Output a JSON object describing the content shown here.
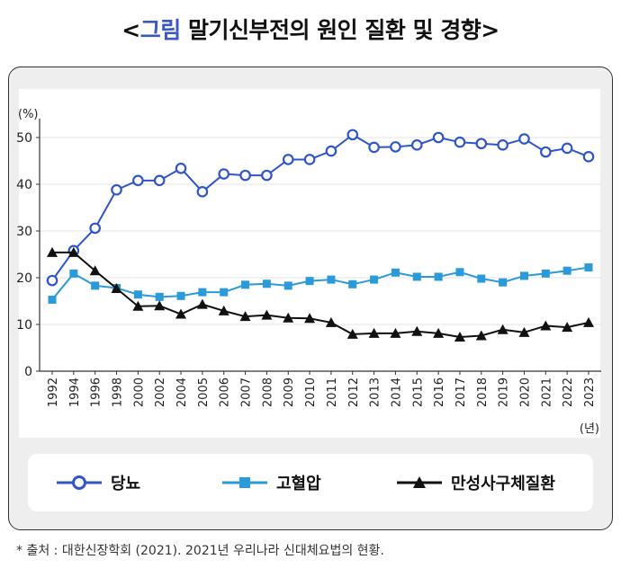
{
  "title": {
    "open": "<",
    "accent": "그림",
    "text": "말기신부전의 원인 질환 및 경향",
    "close": ">"
  },
  "footnote": "* 출처 : 대한신장학회 (2021). 2021년 우리나라 신대체요법의 현황.",
  "chart_data": {
    "type": "line",
    "ylabel": "(%)",
    "xlabel": "(년)",
    "ylim": [
      0,
      50
    ],
    "yticks": [
      0,
      10,
      20,
      30,
      40,
      50
    ],
    "grid": true,
    "legend_position": "bottom",
    "categories": [
      "1992",
      "1994",
      "1996",
      "1998",
      "2000",
      "2002",
      "2004",
      "2005",
      "2006",
      "2007",
      "2008",
      "2009",
      "2010",
      "2011",
      "2012",
      "2013",
      "2014",
      "2015",
      "2016",
      "2017",
      "2018",
      "2019",
      "2020",
      "2021",
      "2022",
      "2023"
    ],
    "series": [
      {
        "name": "당뇨",
        "color": "#2f55c8",
        "marker": "circle-open",
        "values": [
          19.4,
          25.8,
          30.6,
          38.8,
          40.8,
          40.8,
          43.4,
          38.4,
          42.2,
          41.9,
          41.9,
          45.3,
          45.3,
          47.1,
          50.6,
          47.9,
          48.0,
          48.4,
          50.0,
          49.0,
          48.7,
          48.4,
          49.7,
          46.9,
          47.7,
          45.9
        ]
      },
      {
        "name": "고혈압",
        "color": "#2a9ad9",
        "marker": "square",
        "values": [
          15.3,
          20.9,
          18.3,
          17.8,
          16.4,
          15.9,
          16.1,
          16.9,
          16.9,
          18.5,
          18.7,
          18.3,
          19.3,
          19.6,
          18.6,
          19.6,
          21.1,
          20.2,
          20.2,
          21.2,
          19.8,
          19.0,
          20.4,
          20.9,
          21.5,
          22.2
        ]
      },
      {
        "name": "만성사구체질환",
        "color": "#111111",
        "marker": "triangle",
        "values": [
          25.4,
          25.4,
          21.5,
          17.7,
          13.9,
          14.0,
          12.2,
          14.3,
          12.9,
          11.7,
          12.0,
          11.4,
          11.3,
          10.4,
          7.9,
          8.1,
          8.1,
          8.5,
          8.1,
          7.3,
          7.6,
          8.9,
          8.3,
          9.7,
          9.4,
          10.4
        ]
      }
    ]
  }
}
